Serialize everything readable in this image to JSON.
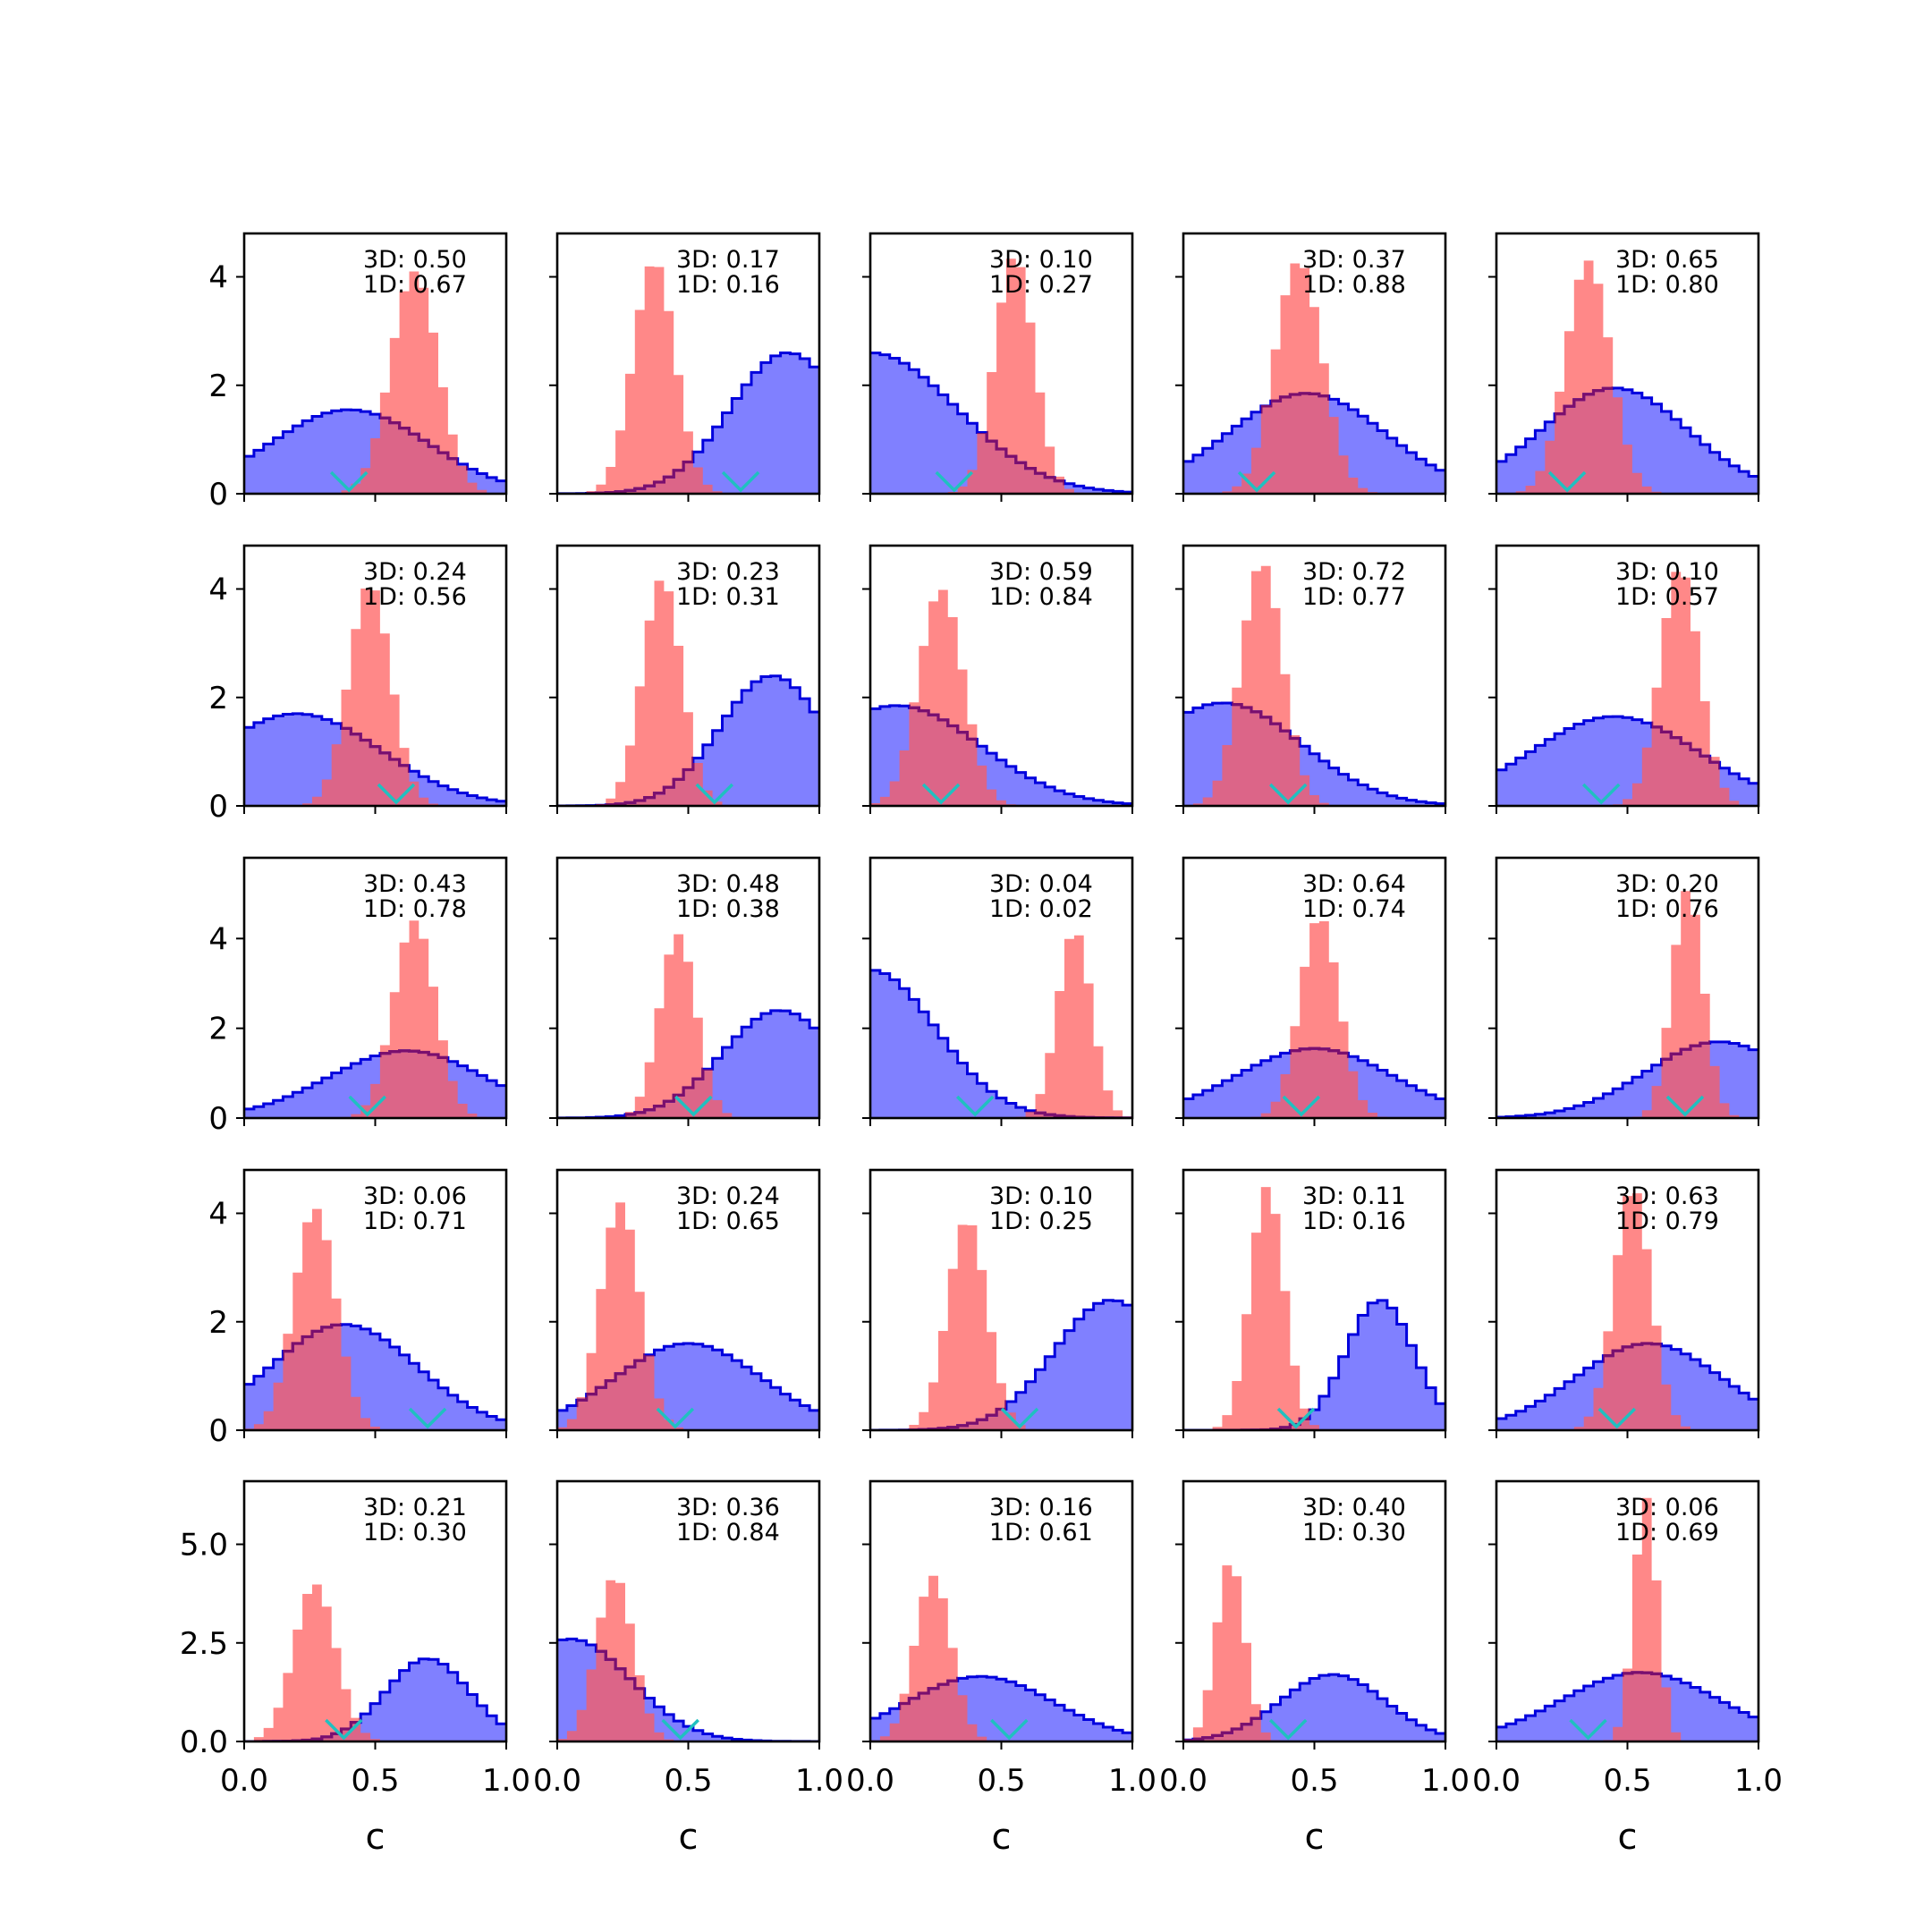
{
  "figure": {
    "x_axis_label": "c",
    "x_ticks": [
      0.0,
      0.5,
      1.0
    ],
    "x_tick_labels": [
      "0.0",
      "0.5",
      "1.0"
    ],
    "row_y_ticks": [
      {
        "values": [
          0,
          2,
          4
        ],
        "labels": [
          "0",
          "2",
          "4"
        ],
        "ylim": [
          0,
          4.8
        ]
      },
      {
        "values": [
          0,
          2,
          4
        ],
        "labels": [
          "0",
          "2",
          "4"
        ],
        "ylim": [
          0,
          4.8
        ]
      },
      {
        "values": [
          0,
          2,
          4
        ],
        "labels": [
          "0",
          "2",
          "4"
        ],
        "ylim": [
          0,
          5.8
        ]
      },
      {
        "values": [
          0,
          2,
          4
        ],
        "labels": [
          "0",
          "2",
          "4"
        ],
        "ylim": [
          0,
          4.8
        ]
      },
      {
        "values": [
          0,
          2.5,
          5.0
        ],
        "labels": [
          "0.0",
          "2.5",
          "5.0"
        ],
        "ylim": [
          0,
          6.6
        ]
      }
    ],
    "colors": {
      "blue_fill": "#8080ff",
      "blue_line": "#0000dd",
      "red_fill": "#ff5a5a",
      "red_alpha": 0.72,
      "overlap_line": "#7a0f6e",
      "marker": "#20c0c0"
    }
  },
  "chart_data": [
    {
      "type": "histogram",
      "row": 0,
      "col": 0,
      "annotations": [
        "3D: 0.50",
        "1D: 0.67"
      ],
      "blue": {
        "mu": 0.4,
        "sd": 0.3,
        "peak": 1.55
      },
      "red": {
        "mu": 0.65,
        "sd": 0.09,
        "peak": 4.1
      },
      "marker_x": 0.4
    },
    {
      "type": "histogram",
      "row": 0,
      "col": 1,
      "annotations": [
        "3D: 0.17",
        "1D: 0.16"
      ],
      "blue": {
        "mu": 0.88,
        "sd": 0.22,
        "peak": 2.6
      },
      "red": {
        "mu": 0.37,
        "sd": 0.08,
        "peak": 4.3
      },
      "marker_x": 0.7
    },
    {
      "type": "histogram",
      "row": 0,
      "col": 2,
      "annotations": [
        "3D: 0.10",
        "1D: 0.27"
      ],
      "blue": {
        "mu": 0.0,
        "sd": 0.33,
        "peak": 2.6
      },
      "red": {
        "mu": 0.55,
        "sd": 0.075,
        "peak": 4.4
      },
      "marker_x": 0.32
    },
    {
      "type": "histogram",
      "row": 0,
      "col": 3,
      "annotations": [
        "3D: 0.37",
        "1D: 0.88"
      ],
      "blue": {
        "mu": 0.47,
        "sd": 0.3,
        "peak": 1.85
      },
      "red": {
        "mu": 0.44,
        "sd": 0.09,
        "peak": 4.3
      },
      "marker_x": 0.28
    },
    {
      "type": "histogram",
      "row": 0,
      "col": 4,
      "annotations": [
        "3D: 0.65",
        "1D: 0.80"
      ],
      "blue": {
        "mu": 0.45,
        "sd": 0.28,
        "peak": 1.95
      },
      "red": {
        "mu": 0.35,
        "sd": 0.085,
        "peak": 4.3
      },
      "marker_x": 0.27
    },
    {
      "type": "histogram",
      "row": 1,
      "col": 0,
      "annotations": [
        "3D: 0.24",
        "1D: 0.56"
      ],
      "blue": {
        "mu": 0.2,
        "sd": 0.32,
        "peak": 1.7
      },
      "red": {
        "mu": 0.48,
        "sd": 0.08,
        "peak": 4.1
      },
      "marker_x": 0.58
    },
    {
      "type": "histogram",
      "row": 1,
      "col": 1,
      "annotations": [
        "3D: 0.23",
        "1D: 0.31"
      ],
      "blue": {
        "mu": 0.82,
        "sd": 0.2,
        "peak": 2.4
      },
      "red": {
        "mu": 0.4,
        "sd": 0.075,
        "peak": 4.2
      },
      "marker_x": 0.6
    },
    {
      "type": "histogram",
      "row": 1,
      "col": 2,
      "annotations": [
        "3D: 0.59",
        "1D: 0.84"
      ],
      "blue": {
        "mu": 0.1,
        "sd": 0.32,
        "peak": 1.85
      },
      "red": {
        "mu": 0.27,
        "sd": 0.085,
        "peak": 4.0
      },
      "marker_x": 0.27
    },
    {
      "type": "histogram",
      "row": 1,
      "col": 3,
      "annotations": [
        "3D: 0.72",
        "1D: 0.77"
      ],
      "blue": {
        "mu": 0.15,
        "sd": 0.3,
        "peak": 1.9
      },
      "red": {
        "mu": 0.3,
        "sd": 0.08,
        "peak": 4.5
      },
      "marker_x": 0.4
    },
    {
      "type": "histogram",
      "row": 1,
      "col": 4,
      "annotations": [
        "3D: 0.10",
        "1D: 0.57"
      ],
      "blue": {
        "mu": 0.45,
        "sd": 0.32,
        "peak": 1.65
      },
      "red": {
        "mu": 0.7,
        "sd": 0.075,
        "peak": 4.4
      },
      "marker_x": 0.4
    },
    {
      "type": "histogram",
      "row": 2,
      "col": 0,
      "annotations": [
        "3D: 0.43",
        "1D: 0.78"
      ],
      "blue": {
        "mu": 0.62,
        "sd": 0.3,
        "peak": 1.5
      },
      "red": {
        "mu": 0.65,
        "sd": 0.08,
        "peak": 4.4
      },
      "marker_x": 0.47
    },
    {
      "type": "histogram",
      "row": 2,
      "col": 1,
      "annotations": [
        "3D: 0.48",
        "1D: 0.38"
      ],
      "blue": {
        "mu": 0.85,
        "sd": 0.22,
        "peak": 2.4
      },
      "red": {
        "mu": 0.46,
        "sd": 0.07,
        "peak": 4.1
      },
      "marker_x": 0.52
    },
    {
      "type": "histogram",
      "row": 2,
      "col": 2,
      "annotations": [
        "3D: 0.04",
        "1D: 0.02"
      ],
      "blue": {
        "mu": 0.0,
        "sd": 0.25,
        "peak": 3.3
      },
      "red": {
        "mu": 0.78,
        "sd": 0.065,
        "peak": 4.2
      },
      "marker_x": 0.4
    },
    {
      "type": "histogram",
      "row": 2,
      "col": 3,
      "annotations": [
        "3D: 0.64",
        "1D: 0.74"
      ],
      "blue": {
        "mu": 0.5,
        "sd": 0.3,
        "peak": 1.55
      },
      "red": {
        "mu": 0.52,
        "sd": 0.075,
        "peak": 4.5
      },
      "marker_x": 0.45
    },
    {
      "type": "histogram",
      "row": 2,
      "col": 4,
      "annotations": [
        "3D: 0.20",
        "1D: 0.76"
      ],
      "blue": {
        "mu": 0.85,
        "sd": 0.28,
        "peak": 1.7
      },
      "red": {
        "mu": 0.73,
        "sd": 0.06,
        "peak": 5.1
      },
      "marker_x": 0.72
    },
    {
      "type": "histogram",
      "row": 3,
      "col": 0,
      "annotations": [
        "3D: 0.06",
        "1D: 0.71"
      ],
      "blue": {
        "mu": 0.38,
        "sd": 0.28,
        "peak": 1.95
      },
      "red": {
        "mu": 0.27,
        "sd": 0.08,
        "peak": 4.1
      },
      "marker_x": 0.7
    },
    {
      "type": "histogram",
      "row": 3,
      "col": 1,
      "annotations": [
        "3D: 0.24",
        "1D: 0.65"
      ],
      "blue": {
        "mu": 0.5,
        "sd": 0.28,
        "peak": 1.6
      },
      "red": {
        "mu": 0.24,
        "sd": 0.075,
        "peak": 4.2
      },
      "marker_x": 0.45
    },
    {
      "type": "histogram",
      "row": 3,
      "col": 2,
      "annotations": [
        "3D: 0.10",
        "1D: 0.25"
      ],
      "blue": {
        "mu": 0.92,
        "sd": 0.22,
        "peak": 2.4
      },
      "red": {
        "mu": 0.37,
        "sd": 0.075,
        "peak": 3.9
      },
      "marker_x": 0.57
    },
    {
      "type": "histogram",
      "row": 3,
      "col": 3,
      "annotations": [
        "3D: 0.11",
        "1D: 0.16"
      ],
      "blue": {
        "mu": 0.75,
        "sd": 0.13,
        "peak": 2.4
      },
      "red": {
        "mu": 0.32,
        "sd": 0.065,
        "peak": 4.5
      },
      "marker_x": 0.43
    },
    {
      "type": "histogram",
      "row": 3,
      "col": 4,
      "annotations": [
        "3D: 0.63",
        "1D: 0.79"
      ],
      "blue": {
        "mu": 0.58,
        "sd": 0.28,
        "peak": 1.6
      },
      "red": {
        "mu": 0.52,
        "sd": 0.07,
        "peak": 4.5
      },
      "marker_x": 0.46
    },
    {
      "type": "histogram",
      "row": 4,
      "col": 0,
      "annotations": [
        "3D: 0.21",
        "1D: 0.30"
      ],
      "blue": {
        "mu": 0.7,
        "sd": 0.16,
        "peak": 2.1
      },
      "red": {
        "mu": 0.27,
        "sd": 0.08,
        "peak": 4.0
      },
      "marker_x": 0.38
    },
    {
      "type": "histogram",
      "row": 4,
      "col": 1,
      "annotations": [
        "3D: 0.36",
        "1D: 0.84"
      ],
      "blue": {
        "mu": 0.05,
        "sd": 0.23,
        "peak": 2.6
      },
      "red": {
        "mu": 0.22,
        "sd": 0.07,
        "peak": 4.2
      },
      "marker_x": 0.47
    },
    {
      "type": "histogram",
      "row": 4,
      "col": 2,
      "annotations": [
        "3D: 0.16",
        "1D: 0.61"
      ],
      "blue": {
        "mu": 0.42,
        "sd": 0.28,
        "peak": 1.65
      },
      "red": {
        "mu": 0.24,
        "sd": 0.07,
        "peak": 4.2
      },
      "marker_x": 0.53
    },
    {
      "type": "histogram",
      "row": 4,
      "col": 3,
      "annotations": [
        "3D: 0.40",
        "1D: 0.30"
      ],
      "blue": {
        "mu": 0.57,
        "sd": 0.2,
        "peak": 1.7
      },
      "red": {
        "mu": 0.18,
        "sd": 0.055,
        "peak": 4.6
      },
      "marker_x": 0.4
    },
    {
      "type": "histogram",
      "row": 4,
      "col": 4,
      "annotations": [
        "3D: 0.06",
        "1D: 0.69"
      ],
      "blue": {
        "mu": 0.55,
        "sd": 0.3,
        "peak": 1.75
      },
      "red": {
        "mu": 0.57,
        "sd": 0.045,
        "peak": 6.2
      },
      "marker_x": 0.35
    }
  ]
}
